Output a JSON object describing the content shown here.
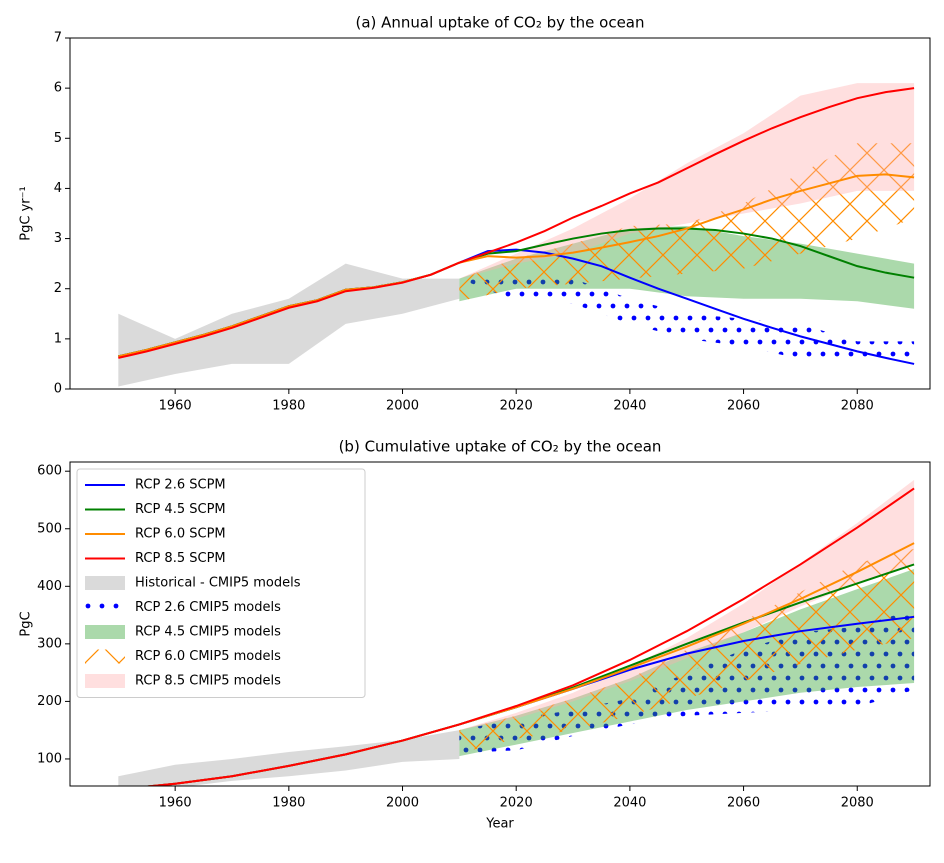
{
  "chart_data": [
    {
      "type": "line",
      "title": "(a) Annual uptake of CO₂ by the ocean",
      "ylabel": "PgC yr⁻¹",
      "xlim": [
        1941.5,
        2092.8
      ],
      "ylim": [
        0,
        7
      ],
      "xticks": [
        1960,
        1980,
        2000,
        2020,
        2040,
        2060,
        2080
      ],
      "yticks": [
        0,
        1,
        2,
        3,
        4,
        5,
        6,
        7
      ],
      "x": [
        1950,
        1955,
        1960,
        1965,
        1970,
        1975,
        1980,
        1985,
        1990,
        1995,
        2000,
        2005,
        2010,
        2015,
        2020,
        2025,
        2030,
        2035,
        2040,
        2045,
        2050,
        2055,
        2060,
        2065,
        2070,
        2075,
        2080,
        2085,
        2090
      ],
      "series": [
        {
          "color": "#0000ff",
          "values": [
            0.65,
            0.78,
            0.93,
            1.08,
            1.25,
            1.45,
            1.65,
            1.77,
            1.98,
            2.03,
            2.13,
            2.28,
            2.52,
            2.75,
            2.78,
            2.72,
            2.6,
            2.45,
            2.22,
            2.0,
            1.8,
            1.6,
            1.4,
            1.22,
            1.05,
            0.9,
            0.75,
            0.62,
            0.5
          ]
        },
        {
          "color": "#008000",
          "values": [
            0.65,
            0.78,
            0.93,
            1.08,
            1.25,
            1.45,
            1.65,
            1.77,
            1.98,
            2.03,
            2.13,
            2.28,
            2.52,
            2.7,
            2.75,
            2.88,
            3.0,
            3.1,
            3.17,
            3.2,
            3.2,
            3.17,
            3.1,
            3.0,
            2.85,
            2.65,
            2.45,
            2.32,
            2.22
          ]
        },
        {
          "color": "#ff8c00",
          "values": [
            0.65,
            0.78,
            0.93,
            1.08,
            1.25,
            1.45,
            1.65,
            1.77,
            1.98,
            2.03,
            2.13,
            2.28,
            2.52,
            2.65,
            2.62,
            2.65,
            2.72,
            2.82,
            2.93,
            3.05,
            3.2,
            3.4,
            3.58,
            3.78,
            3.95,
            4.1,
            4.25,
            4.28,
            4.22
          ]
        },
        {
          "color": "#ff0000",
          "values": [
            0.62,
            0.75,
            0.9,
            1.05,
            1.22,
            1.42,
            1.62,
            1.75,
            1.95,
            2.02,
            2.12,
            2.28,
            2.52,
            2.72,
            2.92,
            3.15,
            3.42,
            3.65,
            3.9,
            4.12,
            4.4,
            4.68,
            4.95,
            5.2,
            5.42,
            5.62,
            5.8,
            5.92,
            6.0
          ]
        }
      ],
      "bands": [
        {
          "color": "#d3d3d3",
          "hatch": "none",
          "x": [
            1950,
            1960,
            1970,
            1980,
            1990,
            2000,
            2010
          ],
          "upper": [
            1.5,
            1.0,
            1.5,
            1.8,
            2.5,
            2.2,
            2.2
          ],
          "lower": [
            0.05,
            0.3,
            0.5,
            0.5,
            1.3,
            1.5,
            1.8
          ]
        },
        {
          "color": "#0000ff",
          "hatch": "dots",
          "x": [
            2010,
            2020,
            2030,
            2040,
            2050,
            2060,
            2070,
            2080,
            2090
          ],
          "upper": [
            2.2,
            2.2,
            2.2,
            1.8,
            1.5,
            1.4,
            1.3,
            0.95,
            0.95
          ],
          "lower": [
            2.2,
            1.75,
            1.7,
            1.3,
            1.0,
            0.85,
            0.6,
            0.55,
            0.5
          ]
        },
        {
          "color": "#2ca02c",
          "hatch": "none",
          "x": [
            2010,
            2020,
            2030,
            2040,
            2050,
            2060,
            2070,
            2080,
            2090
          ],
          "upper": [
            2.2,
            2.6,
            2.9,
            3.2,
            3.25,
            3.05,
            2.9,
            2.7,
            2.5
          ],
          "lower": [
            1.75,
            2.0,
            2.0,
            2.0,
            1.85,
            1.8,
            1.8,
            1.75,
            1.6
          ]
        },
        {
          "color": "#ff8c00",
          "hatch": "cross",
          "x": [
            2010,
            2020,
            2030,
            2040,
            2050,
            2060,
            2070,
            2080,
            2090
          ],
          "upper": [
            2.2,
            2.6,
            2.9,
            3.25,
            3.3,
            3.7,
            4.3,
            4.9,
            4.9
          ],
          "lower": [
            1.75,
            2.0,
            2.1,
            2.2,
            2.3,
            2.4,
            2.7,
            3.0,
            3.4
          ]
        },
        {
          "color": "#ffb0b0",
          "hatch": "none",
          "x": [
            2010,
            2020,
            2030,
            2040,
            2050,
            2060,
            2070,
            2080,
            2090
          ],
          "upper": [
            2.2,
            2.7,
            3.2,
            3.8,
            4.5,
            5.1,
            5.85,
            6.1,
            6.1
          ],
          "lower": [
            2.2,
            2.5,
            2.7,
            3.1,
            3.3,
            3.5,
            3.7,
            3.95,
            3.95
          ]
        }
      ]
    },
    {
      "type": "line",
      "title": "(b) Cumulative uptake of CO₂ by the ocean",
      "ylabel": "PgC",
      "xlabel": "Year",
      "xlim": [
        1941.5,
        2092.8
      ],
      "ylim": [
        53,
        616
      ],
      "xticks": [
        1960,
        1980,
        2000,
        2020,
        2040,
        2060,
        2080
      ],
      "yticks": [
        100,
        200,
        300,
        400,
        500,
        600
      ],
      "legend": "upper left",
      "x": [
        1950,
        1960,
        1970,
        1980,
        1990,
        2000,
        2010,
        2020,
        2030,
        2040,
        2050,
        2060,
        2070,
        2080,
        2090
      ],
      "series": [
        {
          "name": "RCP 2.6 SCPM",
          "color": "#0000ff",
          "values": [
            47,
            57,
            70,
            88,
            108,
            132,
            160,
            190,
            222,
            255,
            283,
            305,
            322,
            335,
            347
          ]
        },
        {
          "name": "RCP 4.5  SCPM",
          "color": "#008000",
          "values": [
            47,
            57,
            70,
            88,
            108,
            132,
            160,
            190,
            224,
            262,
            300,
            337,
            372,
            405,
            438
          ]
        },
        {
          "name": "RCP 6.0  SCPM",
          "color": "#ff8c00",
          "values": [
            47,
            57,
            70,
            88,
            108,
            132,
            160,
            190,
            222,
            258,
            295,
            335,
            378,
            425,
            475
          ]
        },
        {
          "name": "RCP 8.5 SCPM",
          "color": "#ff0000",
          "values": [
            47,
            57,
            70,
            88,
            108,
            132,
            160,
            192,
            228,
            272,
            322,
            378,
            438,
            502,
            570
          ]
        }
      ],
      "bands": [
        {
          "name": "Historical - CMIP5 models",
          "color": "#d3d3d3",
          "hatch": "none",
          "x": [
            1950,
            1960,
            1970,
            1980,
            1990,
            2000,
            2010
          ],
          "upper": [
            70,
            90,
            100,
            112,
            122,
            133,
            150
          ],
          "lower": [
            35,
            50,
            62,
            70,
            80,
            95,
            100
          ]
        },
        {
          "name": "RCP 2.6 CMIP5 models",
          "color": "#0000ff",
          "hatch": "dots",
          "x": [
            2010,
            2020,
            2030,
            2040,
            2050,
            2060,
            2070,
            2080,
            2090
          ],
          "upper": [
            150,
            170,
            185,
            205,
            250,
            290,
            320,
            330,
            360
          ],
          "lower": [
            110,
            115,
            140,
            160,
            175,
            180,
            185,
            190,
            220
          ]
        },
        {
          "name": "RCP 4.5 CMIP5 models",
          "color": "#2ca02c",
          "hatch": "none",
          "x": [
            2010,
            2020,
            2030,
            2040,
            2050,
            2060,
            2070,
            2080,
            2090
          ],
          "upper": [
            150,
            175,
            205,
            240,
            285,
            320,
            360,
            395,
            430
          ],
          "lower": [
            105,
            125,
            145,
            165,
            185,
            200,
            215,
            225,
            232
          ]
        },
        {
          "name": "RCP 6.0 CMIP5 models",
          "color": "#ff8c00",
          "hatch": "cross",
          "x": [
            2010,
            2020,
            2030,
            2040,
            2050,
            2060,
            2070,
            2080,
            2090
          ],
          "upper": [
            150,
            175,
            205,
            240,
            290,
            340,
            390,
            440,
            465
          ],
          "lower": [
            110,
            135,
            150,
            175,
            205,
            235,
            265,
            290,
            310
          ]
        },
        {
          "name": "RCP 8.5 CMIP5 models",
          "color": "#ffb0b0",
          "hatch": "none",
          "x": [
            2010,
            2020,
            2030,
            2040,
            2050,
            2060,
            2070,
            2080,
            2090
          ],
          "upper": [
            150,
            180,
            215,
            260,
            310,
            370,
            440,
            510,
            585
          ],
          "lower": [
            150,
            170,
            200,
            235,
            275,
            320,
            365,
            405,
            440
          ]
        }
      ]
    }
  ]
}
